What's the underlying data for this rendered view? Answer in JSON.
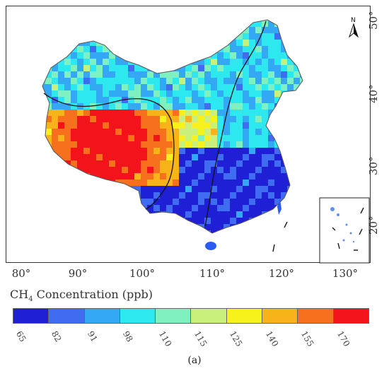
{
  "map": {
    "x_axis_ticks": [
      "80°",
      "90°",
      "100°",
      "110°",
      "120°",
      "130°"
    ],
    "y_axis_ticks": [
      "50°",
      "40°",
      "30°",
      "20°"
    ],
    "north_label": "N"
  },
  "legend": {
    "title_prefix": "CH",
    "title_subscript": "4",
    "title_suffix": " Concentration (ppb)",
    "classes": [
      {
        "label": "65",
        "color": "#1f1fd6"
      },
      {
        "label": "82",
        "color": "#3f6cf0"
      },
      {
        "label": "91",
        "color": "#35a8f5"
      },
      {
        "label": "98",
        "color": "#2ee8f0"
      },
      {
        "label": "110",
        "color": "#7ff0c0"
      },
      {
        "label": "115",
        "color": "#c8f07a"
      },
      {
        "label": "125",
        "color": "#f7f21c"
      },
      {
        "label": "140",
        "color": "#f8b21a"
      },
      {
        "label": "155",
        "color": "#f6701e"
      },
      {
        "label": "170",
        "color": "#f2141a"
      }
    ]
  },
  "panel_label": "(a)"
}
